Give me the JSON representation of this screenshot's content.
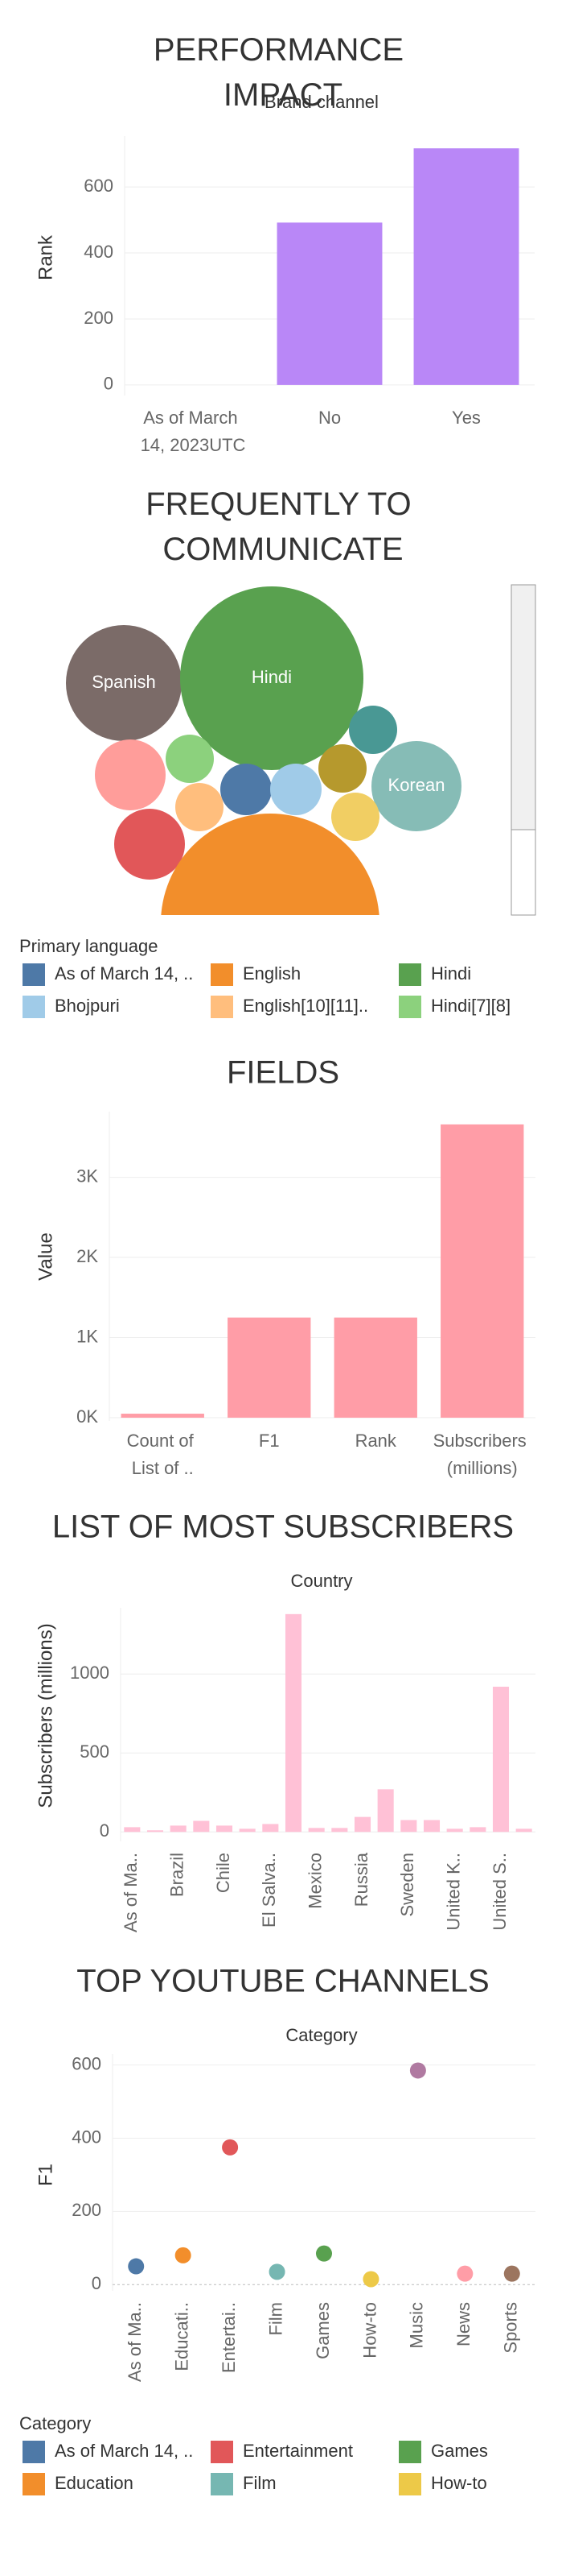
{
  "chart_data": [
    {
      "type": "bar",
      "title": "PERFORMANCE IMPACT",
      "subtitle": "Brand channel",
      "y_label": "Rank",
      "categories": [
        "As of March 14, 2023UTC",
        "No",
        "Yes"
      ],
      "values": [
        null,
        492,
        717
      ],
      "color": "#b987f7",
      "ylim": [
        -32,
        754
      ],
      "yticks": [
        0,
        200,
        400,
        600
      ],
      "grid": true
    },
    {
      "type": "bubble",
      "title": "FREQUENTLY TO COMMUNICATE",
      "labels": [
        "Spanish",
        "Hindi",
        "Korean",
        null,
        null,
        null,
        null,
        null,
        null,
        null,
        null,
        null,
        null
      ],
      "values": [
        1296,
        3249,
        784,
        484,
        225,
        225,
        225,
        256,
        256,
        225,
        225,
        484,
        4624
      ],
      "colors": [
        "#7b6b68",
        "#59a14f",
        "#86bcb6",
        "#ff9d9a",
        "#8cd17d",
        "#499894",
        "#b6992d",
        "#4e79a7",
        "#a0cbe8",
        "#ffbe7d",
        "#f1ce63",
        "#e15759",
        "#f28e2b"
      ],
      "legend": {
        "title": "Primary language",
        "names": [
          "As of March 14, ..",
          "English",
          "Hindi",
          "Bhojpuri",
          "English[10][11]..",
          "Hindi[7][8]"
        ],
        "colors": [
          "#4e79a7",
          "#f28e2b",
          "#59a14f",
          "#a0cbe8",
          "#ffbe7d",
          "#8cd17d"
        ]
      }
    },
    {
      "type": "bar",
      "title": "FIELDS",
      "y_label": "Value",
      "categories": [
        "Count of List of ..",
        "F1",
        "Rank",
        "Subscribers (millions)"
      ],
      "values": [
        50,
        1250,
        1250,
        3660
      ],
      "color": "#ff9da7",
      "ylim": [
        -40,
        3820
      ],
      "yticks": [
        {
          "value": 0,
          "label": "0K"
        },
        {
          "value": 1000,
          "label": "1K"
        },
        {
          "value": 2000,
          "label": "2K"
        },
        {
          "value": 3000,
          "label": "3K"
        }
      ],
      "grid": true
    },
    {
      "type": "bar",
      "title": "LIST OF MOST SUBSCRIBERS",
      "subtitle": "Country",
      "y_label": "Subscribers (millions)",
      "categories": [
        "As of Ma..",
        null,
        "Brazil",
        null,
        "Chile",
        null,
        "El Salva..",
        null,
        "Mexico",
        null,
        "Russia",
        null,
        "Sweden",
        null,
        "United K..",
        null,
        "United S..",
        null
      ],
      "values": [
        30,
        10,
        40,
        70,
        40,
        20,
        50,
        1380,
        25,
        25,
        95,
        270,
        75,
        75,
        20,
        30,
        920,
        20
      ],
      "color": "#ffc1d6",
      "ylim": [
        -60,
        1420
      ],
      "yticks": [
        0,
        500,
        1000
      ],
      "grid": true
    },
    {
      "type": "scatter",
      "title": "TOP YOUTUBE CHANNELS",
      "subtitle": "Category",
      "y_label": "F1",
      "categories": [
        "As of Ma..",
        "Educati..",
        "Entertai..",
        "Film",
        "Games",
        "How-to",
        "Music",
        "News",
        "Sports"
      ],
      "values": [
        50,
        80,
        375,
        35,
        85,
        15,
        585,
        30,
        30
      ],
      "colors": [
        "#4e79a7",
        "#f28e2b",
        "#e15759",
        "#76b7b2",
        "#59a14f",
        "#edc948",
        "#b07aa1",
        "#ff9da7",
        "#9c755f"
      ],
      "ylim": [
        -17,
        630
      ],
      "yticks": [
        0,
        200,
        400,
        600
      ],
      "grid": true,
      "legend": {
        "title": "Category",
        "names": [
          "As of March 14, ..",
          "Entertainment",
          "Games",
          "Education",
          "Film",
          "How-to"
        ],
        "colors": [
          "#4e79a7",
          "#e15759",
          "#59a14f",
          "#f28e2b",
          "#76b7b2",
          "#edc948"
        ]
      }
    }
  ]
}
